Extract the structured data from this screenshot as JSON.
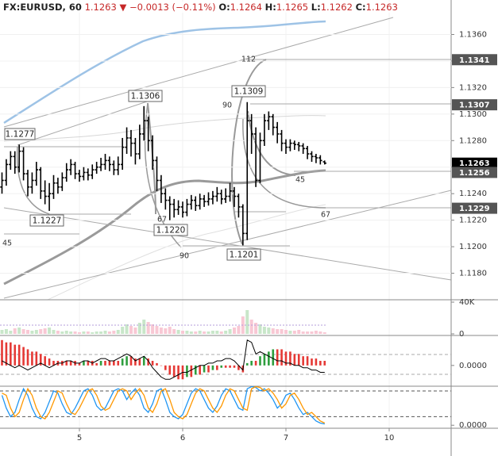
{
  "chart_data": [
    {
      "type": "ohlc",
      "title": "FX:EURUSD, 60",
      "last": "1.1263",
      "change": "−0.0013 (−0.11%)",
      "ohlc_header": [
        {
          "label": "O:",
          "value": "1.1264"
        },
        {
          "label": "H:",
          "value": "1.1265"
        },
        {
          "label": "L:",
          "value": "1.1262"
        },
        {
          "label": "C:",
          "value": "1.1263"
        }
      ],
      "categories": [
        null,
        null,
        null,
        null,
        null,
        null,
        null,
        null,
        null,
        null,
        null,
        null,
        null,
        null,
        null,
        null,
        null,
        null,
        "5",
        null,
        null,
        null,
        null,
        null,
        null,
        null,
        null,
        null,
        null,
        null,
        null,
        null,
        null,
        null,
        null,
        null,
        null,
        null,
        null,
        null,
        null,
        null,
        "6",
        null,
        null,
        null,
        null,
        null,
        null,
        null,
        null,
        null,
        null,
        null,
        null,
        null,
        null,
        null,
        null,
        null,
        null,
        null,
        null,
        null,
        null,
        null,
        "7",
        null,
        null,
        null,
        null,
        null,
        null,
        null,
        null,
        null,
        null,
        null,
        null,
        null,
        null,
        null,
        null,
        null,
        null,
        null,
        null,
        null,
        null,
        null,
        "10",
        null,
        null,
        null,
        null,
        null,
        null,
        null,
        null,
        null,
        null,
        null,
        null,
        null
      ],
      "open": [
        1.1245,
        1.125,
        1.1262,
        1.1268,
        1.126,
        1.1272,
        1.1255,
        1.1245,
        1.125,
        1.1258,
        1.1242,
        1.1238,
        1.124,
        1.1248,
        1.1245,
        1.1252,
        1.1258,
        1.1262,
        1.1255,
        1.1253,
        1.1256,
        1.1254,
        1.1258,
        1.126,
        1.1262,
        1.1265,
        1.1262,
        1.1258,
        1.1262,
        1.1275,
        1.1282,
        1.1278,
        1.127,
        1.1285,
        1.1295,
        1.128,
        1.1265,
        1.125,
        1.124,
        1.1235,
        1.1232,
        1.1228,
        1.123,
        1.1226,
        1.1232,
        1.1235,
        1.1231,
        1.1236,
        1.1234,
        1.1236,
        1.1238,
        1.124,
        1.1236,
        1.1238,
        1.1242,
        1.1238,
        1.123,
        1.121,
        1.1295,
        1.1285,
        1.125,
        1.128,
        1.1295,
        1.1298,
        1.129,
        1.1285,
        1.1278,
        1.1275,
        1.1278,
        1.1277,
        1.1276,
        1.1274,
        1.127,
        1.1268,
        1.1267,
        1.1264,
        null,
        null,
        null,
        null,
        null,
        null,
        null,
        null,
        null,
        null,
        null,
        null,
        null,
        null,
        null,
        null,
        null,
        null,
        null,
        null,
        null,
        null,
        null,
        null,
        null,
        null,
        null,
        null
      ],
      "high": [
        1.1256,
        1.1266,
        1.1272,
        1.1272,
        1.1277,
        1.1275,
        1.1258,
        1.1256,
        1.1264,
        1.126,
        1.125,
        1.1248,
        1.1254,
        1.1252,
        1.1256,
        1.1263,
        1.1266,
        1.1264,
        1.1258,
        1.126,
        1.1259,
        1.1262,
        1.1264,
        1.1267,
        1.127,
        1.1268,
        1.1265,
        1.1268,
        1.1282,
        1.129,
        1.1288,
        1.1282,
        1.1292,
        1.1306,
        1.1298,
        1.1284,
        1.1268,
        1.1254,
        1.1244,
        1.1238,
        1.1236,
        1.1235,
        1.1234,
        1.1236,
        1.1239,
        1.1238,
        1.124,
        1.1239,
        1.1241,
        1.1242,
        1.1245,
        1.1243,
        1.1244,
        1.1248,
        1.1245,
        1.124,
        1.1232,
        1.1309,
        1.13,
        1.129,
        1.1286,
        1.13,
        1.1302,
        1.13,
        1.1294,
        1.1288,
        1.1281,
        1.1281,
        1.128,
        1.1279,
        1.1278,
        1.1276,
        1.1272,
        1.127,
        1.1269,
        1.1265,
        null,
        null,
        null,
        null,
        null,
        null,
        null,
        null,
        null,
        null,
        null,
        null,
        null,
        null,
        null,
        null,
        null,
        null,
        null,
        null,
        null,
        null,
        null,
        null,
        null,
        null,
        null,
        null
      ],
      "low": [
        1.124,
        1.1246,
        1.1258,
        1.1255,
        1.1256,
        1.125,
        1.1238,
        1.124,
        1.1246,
        1.1236,
        1.1232,
        1.1227,
        1.1236,
        1.124,
        1.1242,
        1.1249,
        1.1254,
        1.1251,
        1.1249,
        1.125,
        1.125,
        1.1251,
        1.1255,
        1.1257,
        1.1258,
        1.1257,
        1.1254,
        1.1254,
        1.1258,
        1.127,
        1.1268,
        1.1262,
        1.1266,
        1.128,
        1.1272,
        1.1258,
        1.1242,
        1.1233,
        1.1228,
        1.122,
        1.1222,
        1.1224,
        1.1222,
        1.1223,
        1.1228,
        1.1227,
        1.1228,
        1.123,
        1.1231,
        1.1232,
        1.1234,
        1.1232,
        1.1233,
        1.1234,
        1.123,
        1.1222,
        1.1201,
        1.1205,
        1.127,
        1.1245,
        1.1248,
        1.1276,
        1.1288,
        1.1284,
        1.1278,
        1.1272,
        1.127,
        1.1272,
        1.1273,
        1.1272,
        1.127,
        1.1266,
        1.1264,
        1.1263,
        1.1262,
        1.1262,
        null,
        null,
        null,
        null,
        null,
        null,
        null,
        null,
        null,
        null,
        null,
        null,
        null,
        null,
        null,
        null,
        null,
        null,
        null,
        null,
        null,
        null,
        null,
        null,
        null,
        null,
        null,
        null
      ],
      "close": [
        1.125,
        1.1262,
        1.1268,
        1.126,
        1.1272,
        1.1255,
        1.1245,
        1.125,
        1.1258,
        1.1242,
        1.1238,
        1.124,
        1.1248,
        1.1245,
        1.1252,
        1.1258,
        1.1262,
        1.1255,
        1.1253,
        1.1256,
        1.1254,
        1.1258,
        1.126,
        1.1262,
        1.1265,
        1.1262,
        1.1258,
        1.1262,
        1.1275,
        1.1282,
        1.1278,
        1.127,
        1.1285,
        1.1295,
        1.128,
        1.1265,
        1.125,
        1.124,
        1.1235,
        1.1232,
        1.1228,
        1.123,
        1.1226,
        1.1232,
        1.1235,
        1.1231,
        1.1236,
        1.1234,
        1.1236,
        1.1238,
        1.124,
        1.1236,
        1.1238,
        1.1242,
        1.1238,
        1.123,
        1.121,
        1.1295,
        1.1285,
        1.125,
        1.128,
        1.1295,
        1.1298,
        1.129,
        1.1285,
        1.1278,
        1.1275,
        1.1278,
        1.1277,
        1.1276,
        1.1274,
        1.127,
        1.1268,
        1.1267,
        1.1265,
        1.1263,
        null,
        null,
        null,
        null,
        null,
        null,
        null,
        null,
        null,
        null,
        null,
        null,
        null,
        null,
        null,
        null,
        null,
        null,
        null,
        null,
        null,
        null,
        null,
        null,
        null,
        null,
        null,
        null
      ],
      "color": "#000000",
      "ylim": [
        1.116,
        1.1386
      ],
      "yticks": [
        {
          "value": 1.118,
          "label": "1.1180"
        },
        {
          "value": 1.12,
          "label": "1.1200"
        },
        {
          "value": 1.122,
          "label": "1.1220"
        },
        {
          "value": 1.124,
          "label": "1.1240"
        },
        {
          "value": 1.126,
          "label": "1.1260"
        },
        {
          "value": 1.128,
          "label": "1.1280"
        },
        {
          "value": 1.13,
          "label": "1.1300"
        },
        {
          "value": 1.132,
          "label": "1.1320"
        },
        {
          "value": 1.134,
          "label": "1.1340"
        },
        {
          "value": 1.136,
          "label": "1.1360"
        }
      ],
      "grid": true,
      "price_tags": [
        {
          "value": 1.1341,
          "color": "#555555"
        },
        {
          "value": 1.1307,
          "color": "#555555"
        },
        {
          "value": 1.1263,
          "color": "#000000"
        },
        {
          "value": 1.1256,
          "color": "#555555"
        },
        {
          "value": 1.1229,
          "color": "#555555"
        }
      ],
      "annotations": [
        "1.1277",
        "1.1306",
        "1.1309",
        "1.1227",
        "1.1220",
        "1.1201"
      ],
      "fib_labels": [
        112,
        90,
        67,
        45,
        90,
        67,
        45
      ]
    },
    {
      "type": "volume",
      "values": [
        5000,
        6000,
        4000,
        7000,
        8000,
        6000,
        5000,
        4000,
        5000,
        6000,
        7000,
        8000,
        5000,
        4000,
        3000,
        4000,
        3000,
        3000,
        2000,
        3000,
        3000,
        2000,
        3000,
        3000,
        4000,
        3000,
        4000,
        5000,
        9000,
        12000,
        10000,
        8000,
        14000,
        18000,
        15000,
        12000,
        10000,
        8000,
        7000,
        9000,
        6000,
        5000,
        4000,
        4000,
        3000,
        3000,
        4000,
        3000,
        3000,
        4000,
        4000,
        3000,
        4000,
        6000,
        8000,
        10000,
        22000,
        30000,
        18000,
        14000,
        12000,
        9000,
        8000,
        7000,
        6000,
        6000,
        5000,
        4000,
        4000,
        5000,
        3000,
        3000,
        3000,
        4000,
        3000,
        2000,
        null,
        null,
        null,
        null,
        null,
        null,
        null,
        null,
        null,
        null,
        null,
        null,
        null,
        null,
        null,
        null,
        null,
        null,
        null,
        null,
        null,
        null,
        null,
        null,
        null,
        null,
        null,
        null
      ],
      "up_color": "#c8e6c9",
      "down_color": "#f8c8d4",
      "ylim": [
        0,
        43000
      ],
      "yticks": [
        {
          "value": 40000,
          "label": "40K"
        },
        0
      ]
    },
    {
      "type": "histogram",
      "values": [
        0.0011,
        0.001,
        0.001,
        0.0009,
        0.0009,
        0.0008,
        0.0007,
        0.0006,
        0.0006,
        0.0005,
        0.0004,
        0.0003,
        0.0002,
        0.0002,
        0.0002,
        0.0002,
        0.0002,
        0.0002,
        0.0001,
        0.0002,
        0.0002,
        0.0002,
        0.0001,
        0.0002,
        0.0002,
        0.0002,
        0.0002,
        0.0002,
        0.0003,
        0.0004,
        0.0004,
        0.0003,
        0.0003,
        0.0004,
        0.0003,
        0.0002,
        0.0001,
        0.0,
        -0.0002,
        -0.0004,
        -0.0005,
        -0.0006,
        -0.0006,
        -0.0005,
        -0.0005,
        -0.0004,
        -0.0004,
        -0.0003,
        -0.0003,
        -0.0002,
        -0.0002,
        -0.0001,
        -0.0001,
        -0.0001,
        -0.0001,
        -0.0002,
        -0.0003,
        0.0001,
        0.0002,
        0.0002,
        0.0004,
        0.0005,
        0.0006,
        0.0007,
        0.0007,
        0.0007,
        0.0006,
        0.0006,
        0.0005,
        0.0005,
        0.0004,
        0.0004,
        0.0003,
        0.0003,
        0.0002,
        0.0002,
        null,
        null,
        null,
        null,
        null,
        null,
        null,
        null,
        null,
        null,
        null,
        null,
        null,
        null,
        null,
        null,
        null,
        null,
        null,
        null,
        null,
        null,
        null,
        null,
        null,
        null,
        null,
        null
      ],
      "up_color": "#2e9e3e",
      "down_color": "#e53935",
      "line": {
        "values": [
          0.0002,
          0.0001,
          0.0,
          -0.0001,
          0.0,
          -0.0001,
          -0.0002,
          -0.0001,
          0.0,
          0.0001,
          0.0,
          -0.0001,
          0.0,
          0.0001,
          0.0001,
          0.0002,
          0.0002,
          0.0001,
          0.0001,
          0.0002,
          0.0002,
          0.0001,
          0.0002,
          0.0003,
          0.0003,
          0.0002,
          0.0002,
          0.0003,
          0.0004,
          0.0005,
          0.0004,
          0.0002,
          0.0003,
          0.0004,
          0.0002,
          -0.0001,
          -0.0003,
          -0.0005,
          -0.0006,
          -0.0006,
          -0.0005,
          -0.0004,
          -0.0003,
          -0.0003,
          -0.0002,
          -0.0001,
          0.0,
          0.0,
          0.0001,
          0.0001,
          0.0002,
          0.0002,
          0.0003,
          0.0003,
          0.0002,
          0.0,
          -0.0002,
          0.0011,
          0.001,
          0.0005,
          0.0006,
          0.0005,
          0.0004,
          0.0003,
          0.0002,
          0.0002,
          0.0001,
          0.0001,
          0.0,
          0.0,
          -0.0001,
          -0.0001,
          -0.0002,
          -0.0002,
          -0.0003,
          -0.0003,
          null,
          null,
          null,
          null,
          null,
          null,
          null,
          null,
          null,
          null,
          null,
          null,
          null,
          null,
          null,
          null,
          null,
          null,
          null,
          null,
          null,
          null,
          null,
          null,
          null,
          null,
          null,
          null
        ],
        "color": "#000000"
      },
      "ylim": [
        -0.0009,
        0.0013
      ],
      "yticks": [
        {
          "value": 0,
          "label": "0.0000"
        }
      ]
    },
    {
      "type": "line",
      "series": [
        {
          "color": "#2196f3",
          "values": [
            70,
            40,
            20,
            30,
            60,
            85,
            70,
            40,
            20,
            15,
            30,
            55,
            80,
            75,
            50,
            30,
            25,
            40,
            60,
            80,
            85,
            70,
            45,
            35,
            40,
            60,
            80,
            85,
            80,
            60,
            75,
            85,
            70,
            40,
            30,
            50,
            80,
            85,
            60,
            30,
            20,
            15,
            25,
            50,
            75,
            85,
            80,
            60,
            40,
            30,
            45,
            70,
            85,
            80,
            60,
            40,
            35,
            85,
            90,
            88,
            80,
            85,
            75,
            60,
            40,
            50,
            70,
            75,
            60,
            40,
            25,
            30,
            20,
            10,
            5,
            3,
            null,
            null,
            null,
            null,
            null,
            null,
            null,
            null,
            null,
            null,
            null,
            null,
            null,
            null,
            null,
            null,
            null,
            null,
            null,
            null,
            null,
            null,
            null,
            null,
            null,
            null,
            null,
            null
          ]
        },
        {
          "color": "#ff9800",
          "values": [
            75,
            70,
            40,
            20,
            30,
            60,
            85,
            70,
            40,
            20,
            15,
            30,
            55,
            80,
            75,
            50,
            30,
            25,
            40,
            60,
            80,
            85,
            70,
            45,
            35,
            40,
            60,
            80,
            85,
            80,
            60,
            75,
            85,
            70,
            40,
            30,
            50,
            80,
            85,
            60,
            30,
            20,
            15,
            25,
            50,
            75,
            85,
            80,
            60,
            40,
            30,
            45,
            70,
            85,
            80,
            60,
            40,
            35,
            85,
            90,
            88,
            80,
            85,
            75,
            60,
            40,
            50,
            70,
            75,
            60,
            40,
            25,
            30,
            20,
            10,
            5,
            null,
            null,
            null,
            null,
            null,
            null,
            null,
            null,
            null,
            null,
            null,
            null,
            null,
            null,
            null,
            null,
            null,
            null,
            null,
            null,
            null,
            null,
            null,
            null,
            null,
            null,
            null,
            null
          ]
        }
      ],
      "levels": [
        80,
        20
      ],
      "ylim": [
        -7,
        91
      ],
      "yticks": [
        {
          "value": 0,
          "label": "0.0000"
        }
      ]
    }
  ]
}
